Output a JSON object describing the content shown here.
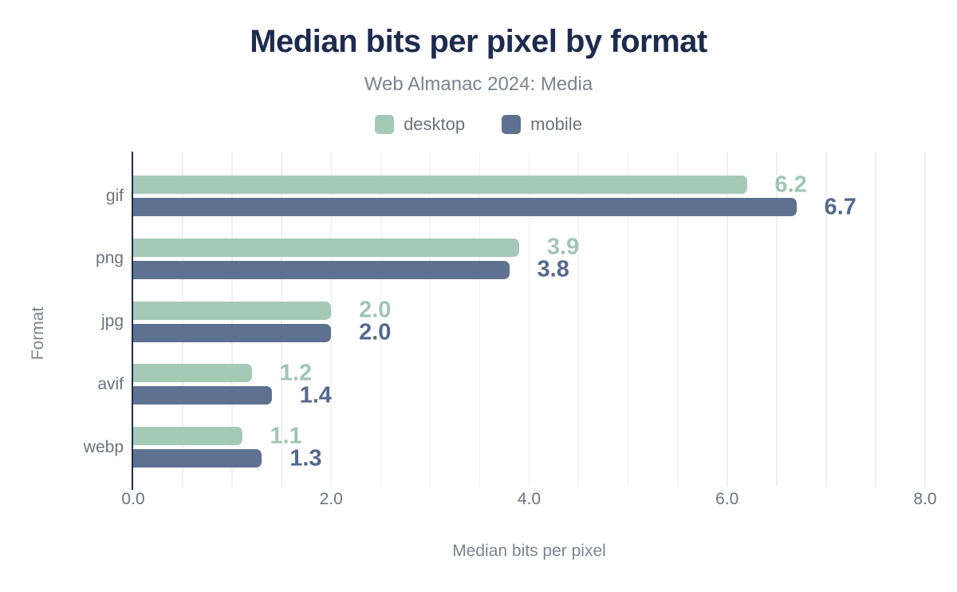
{
  "chart_data": {
    "type": "bar",
    "orientation": "horizontal",
    "title": "Median bits per pixel by format",
    "subtitle": "Web Almanac 2024: Media",
    "xlabel": "Median bits per pixel",
    "ylabel": "Format",
    "xlim": [
      0,
      8
    ],
    "x_tick_values": [
      0,
      2,
      4,
      6,
      8
    ],
    "x_tick_labels": [
      "0.0",
      "2.0",
      "4.0",
      "6.0",
      "8.0"
    ],
    "grid": true,
    "grid_step": 0.5,
    "legend_position": "top-center",
    "categories": [
      "gif",
      "png",
      "jpg",
      "avif",
      "webp"
    ],
    "series": [
      {
        "name": "desktop",
        "color": "#a5c9b7",
        "label_color": "#9fc6b2",
        "values": [
          6.2,
          3.9,
          2.0,
          1.2,
          1.1
        ]
      },
      {
        "name": "mobile",
        "color": "#5e7190",
        "label_color": "#54688e",
        "values": [
          6.7,
          3.8,
          2.0,
          1.4,
          1.3
        ]
      }
    ]
  },
  "colors": {
    "title": "#1c2b4e",
    "subtitle": "#7d838d",
    "axis_line": "#1c2b4e",
    "gridline": "#efefef",
    "tick_label": "#6b7280",
    "category_label": "#6e747e",
    "legend_label": "#6d737d",
    "background": "#ffffff"
  }
}
